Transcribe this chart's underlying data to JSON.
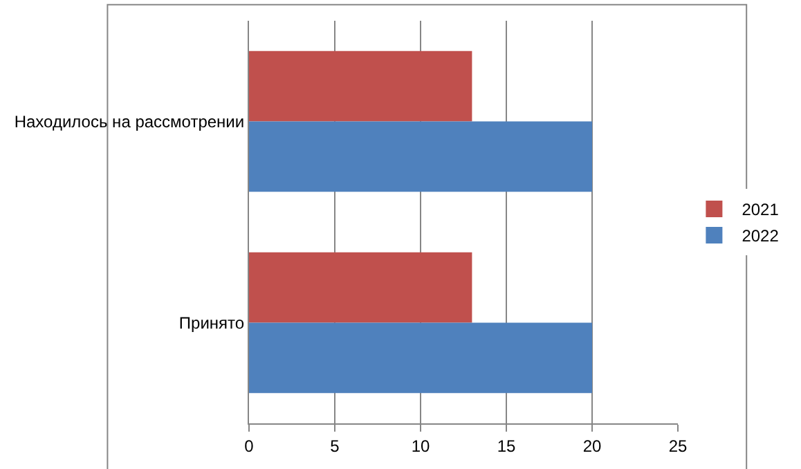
{
  "chart_data": {
    "type": "bar",
    "orientation": "horizontal",
    "categories": [
      "Находилось на рассмотрении",
      "Принято"
    ],
    "series": [
      {
        "name": "2021",
        "color": "#c0504d",
        "values": [
          13,
          13
        ]
      },
      {
        "name": "2022",
        "color": "#4f81bd",
        "values": [
          20,
          20
        ]
      }
    ],
    "xlim": [
      0,
      25
    ],
    "xticks": [
      0,
      5,
      10,
      15,
      20,
      25
    ],
    "grid": "x",
    "legend": "right"
  }
}
